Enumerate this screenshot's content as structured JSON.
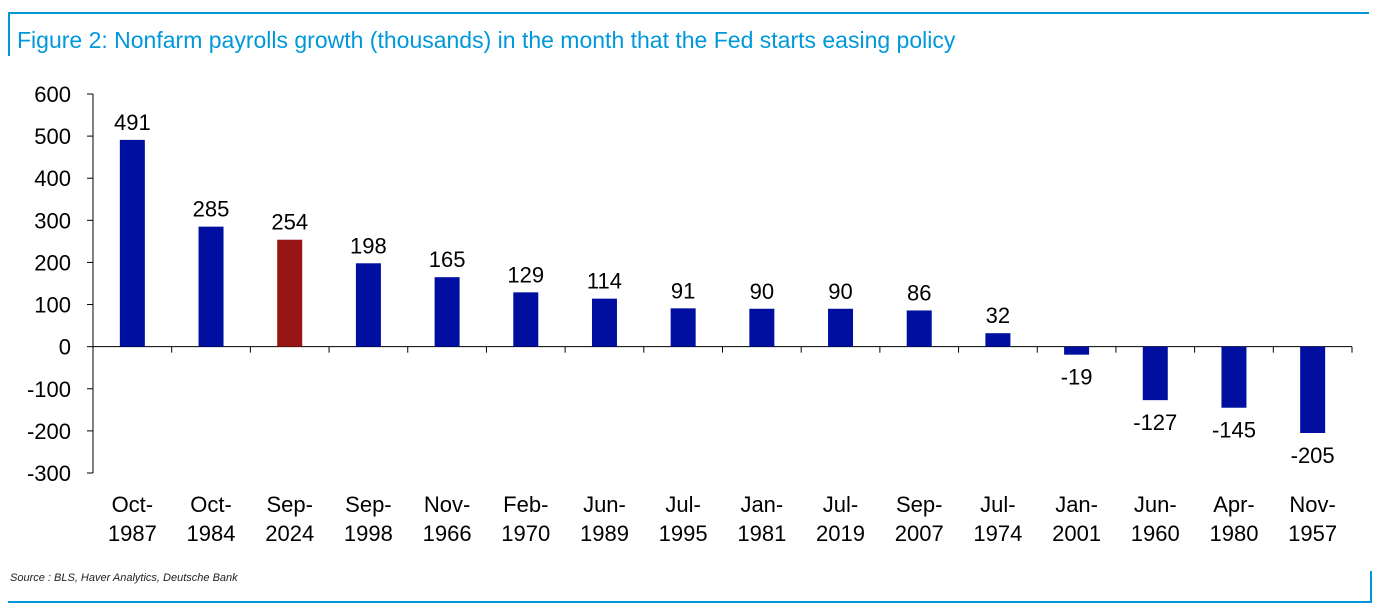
{
  "figure": {
    "title": "Figure 2: Nonfarm payrolls growth (thousands) in the month that the Fed starts easing policy",
    "source": "Source : BLS, Haver Analytics, Deutsche Bank"
  },
  "colors": {
    "frame": "#0098db",
    "bar_default": "#000f9f",
    "bar_highlight": "#961616",
    "title": "#0098db"
  },
  "chart_data": {
    "type": "bar",
    "title": "Figure 2: Nonfarm payrolls growth (thousands) in the month that the Fed starts easing policy",
    "categories": [
      [
        "Oct-",
        "1987"
      ],
      [
        "Oct-",
        "1984"
      ],
      [
        "Sep-",
        "2024"
      ],
      [
        "Sep-",
        "1998"
      ],
      [
        "Nov-",
        "1966"
      ],
      [
        "Feb-",
        "1970"
      ],
      [
        "Jun-",
        "1989"
      ],
      [
        "Jul-",
        "1995"
      ],
      [
        "Jan-",
        "1981"
      ],
      [
        "Jul-",
        "2019"
      ],
      [
        "Sep-",
        "2007"
      ],
      [
        "Jul-",
        "1974"
      ],
      [
        "Jan-",
        "2001"
      ],
      [
        "Jun-",
        "1960"
      ],
      [
        "Apr-",
        "1980"
      ],
      [
        "Nov-",
        "1957"
      ]
    ],
    "values": [
      491,
      285,
      254,
      198,
      165,
      129,
      114,
      91,
      90,
      90,
      86,
      32,
      -19,
      -127,
      -145,
      -205
    ],
    "data_labels": [
      "491",
      "285",
      "254",
      "198",
      "165",
      "129",
      "114",
      "91",
      "90",
      "90",
      "86",
      "32",
      "-19",
      "-127",
      "-145",
      "-205"
    ],
    "highlight_index": 2,
    "ylim": [
      -300,
      600
    ],
    "yticks": [
      -300,
      -200,
      -100,
      0,
      100,
      200,
      300,
      400,
      500,
      600
    ],
    "ytick_labels": [
      "-300",
      "-200",
      "-100",
      "0",
      "100",
      "200",
      "300",
      "400",
      "500",
      "600"
    ],
    "xlabel": "",
    "ylabel": "",
    "grid": false,
    "legend": "none"
  }
}
